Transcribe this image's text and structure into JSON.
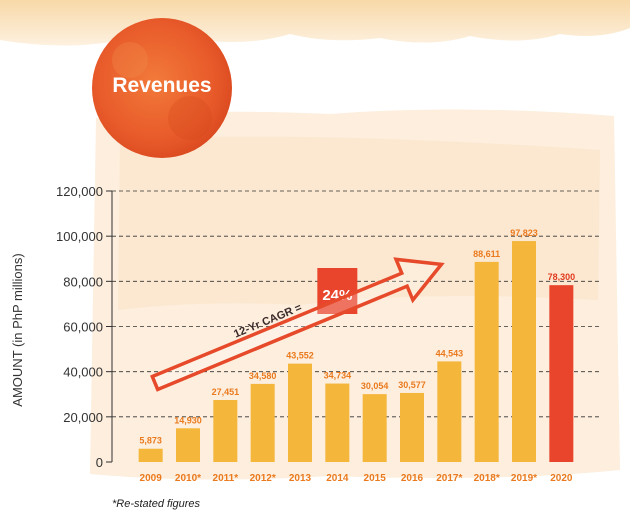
{
  "header": {
    "title": "Revenues"
  },
  "footnote": "*Re-stated figures",
  "annotation": {
    "label": "12-Yr CAGR =",
    "value": "24%"
  },
  "colors": {
    "bar": "#f4b63b",
    "bar_highlight": "#e8452c",
    "label_orange": "#ea7a1e",
    "arrow": "#e64a2a",
    "badge": "#ea5a2a",
    "paper": "#fdebd3"
  },
  "chart_data": {
    "type": "bar",
    "title": "Revenues",
    "xlabel": "",
    "ylabel": "AMOUNT (in PhP millions)",
    "ylim": [
      0,
      120000
    ],
    "yticks": [
      "0",
      "20,000",
      "40,000",
      "60,000",
      "80,000",
      "100,000",
      "120,000"
    ],
    "grid": true,
    "categories": [
      "2009",
      "2010*",
      "2011*",
      "2012*",
      "2013",
      "2014",
      "2015",
      "2016",
      "2017*",
      "2018*",
      "2019*",
      "2020"
    ],
    "values": [
      5873,
      14930,
      27451,
      34580,
      43552,
      34734,
      30054,
      30577,
      44543,
      88611,
      97823,
      78300
    ],
    "value_labels": [
      "5,873",
      "14,930",
      "27,451",
      "34,580",
      "43,552",
      "34,734",
      "30,054",
      "30,577",
      "44,543",
      "88,611",
      "97,823",
      "78,300"
    ],
    "highlight_index": 11
  }
}
